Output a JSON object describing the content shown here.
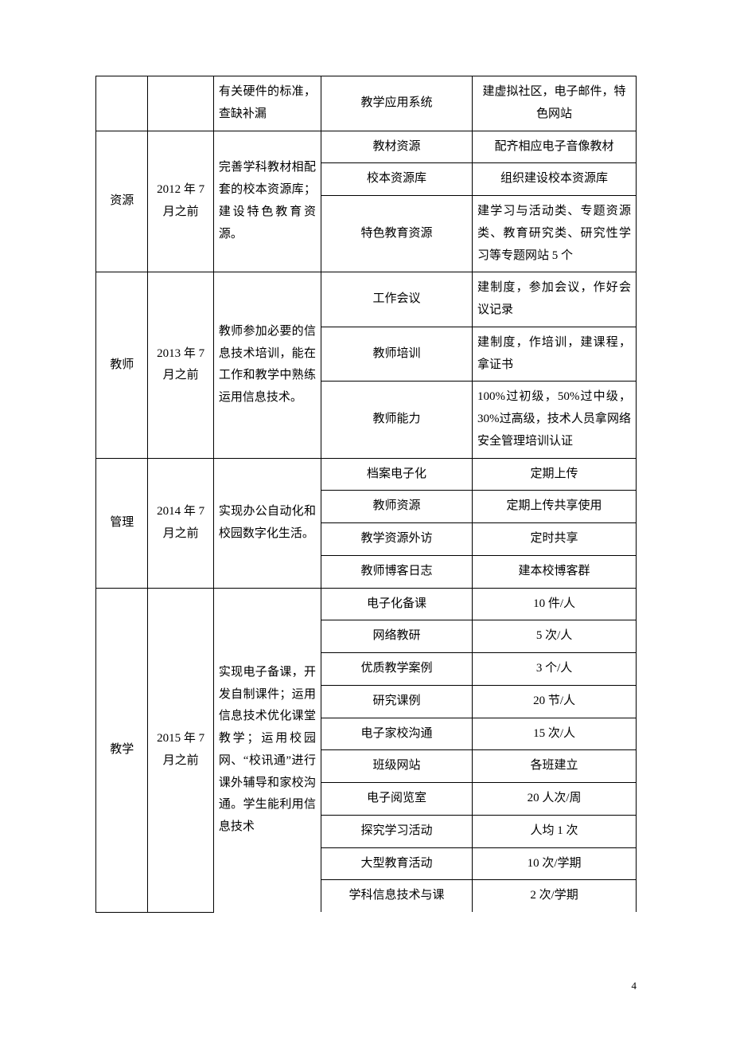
{
  "table": {
    "rows": [
      {
        "c1": "",
        "c2": "",
        "c3": "有关硬件的标准，查缺补漏",
        "c4": "教学应用系统",
        "c5": "建虚拟社区，电子邮件，特色网站"
      },
      {
        "c1": "资源",
        "c2": "2012 年 7 月之前",
        "c3": "完善学科教材相配套的校本资源库；建设特色教育资源。",
        "sub": [
          {
            "c4": "教材资源",
            "c5": "配齐相应电子音像教材"
          },
          {
            "c4": "校本资源库",
            "c5": "组织建设校本资源库"
          },
          {
            "c4": "特色教育资源",
            "c5": "建学习与活动类、专题资源类、教育研究类、研究性学习等专题网站 5 个"
          }
        ]
      },
      {
        "c1": "教师",
        "c2": "2013 年 7 月之前",
        "c3": "教师参加必要的信息技术培训，能在工作和教学中熟练运用信息技术。",
        "sub": [
          {
            "c4": "工作会议",
            "c5": "建制度，参加会议，作好会议记录"
          },
          {
            "c4": "教师培训",
            "c5": "建制度，作培训，建课程，拿证书"
          },
          {
            "c4": "教师能力",
            "c5": "100%过初级，50%过中级，30%过高级，技术人员拿网络安全管理培训认证"
          }
        ]
      },
      {
        "c1": "管理",
        "c2": "2014 年 7 月之前",
        "c3": "实现办公自动化和校园数字化生活。",
        "sub": [
          {
            "c4": "档案电子化",
            "c5": "定期上传"
          },
          {
            "c4": "教师资源",
            "c5": "定期上传共享使用"
          },
          {
            "c4": "教学资源外访",
            "c5": "定时共享"
          },
          {
            "c4": "教师博客日志",
            "c5": "建本校博客群"
          }
        ]
      },
      {
        "c1": "教学",
        "c2": "2015 年 7 月之前",
        "c3": "实现电子备课，开发自制课件；运用信息技术优化课堂教学；运用校园网、“校讯通”进行课外辅导和家校沟通。学生能利用信息技术",
        "sub": [
          {
            "c4": "电子化备课",
            "c5": "10 件/人"
          },
          {
            "c4": "网络教研",
            "c5": "5 次/人"
          },
          {
            "c4": "优质教学案例",
            "c5": "3 个/人"
          },
          {
            "c4": "研究课例",
            "c5": "20 节/人"
          },
          {
            "c4": "电子家校沟通",
            "c5": "15 次/人"
          },
          {
            "c4": "班级网站",
            "c5": "各班建立"
          },
          {
            "c4": "电子阅览室",
            "c5": "20 人次/周"
          },
          {
            "c4": "探究学习活动",
            "c5": "人均 1 次"
          },
          {
            "c4": "大型教育活动",
            "c5": "10 次/学期"
          },
          {
            "c4": "学科信息技术与课",
            "c5": "2 次/学期"
          }
        ]
      }
    ]
  },
  "pageNumber": "4"
}
